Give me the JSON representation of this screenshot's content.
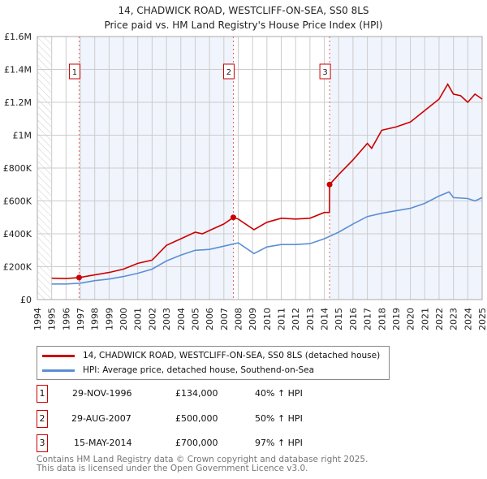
{
  "chart_data": {
    "type": "line",
    "title": "14, CHADWICK ROAD, WESTCLIFF-ON-SEA, SS0 8LS",
    "subtitle": "Price paid vs. HM Land Registry's House Price Index (HPI)",
    "xlim": [
      1994,
      2025
    ],
    "ylim": [
      0,
      1600000
    ],
    "yticks": [
      {
        "v": 0,
        "label": "£0"
      },
      {
        "v": 200000,
        "label": "£200K"
      },
      {
        "v": 400000,
        "label": "£400K"
      },
      {
        "v": 600000,
        "label": "£600K"
      },
      {
        "v": 800000,
        "label": "£800K"
      },
      {
        "v": 1000000,
        "label": "£1M"
      },
      {
        "v": 1200000,
        "label": "£1.2M"
      },
      {
        "v": 1400000,
        "label": "£1.4M"
      },
      {
        "v": 1600000,
        "label": "£1.6M"
      }
    ],
    "xticks": [
      "1994",
      "1995",
      "1996",
      "1997",
      "1998",
      "1999",
      "2000",
      "2001",
      "2002",
      "2003",
      "2004",
      "2005",
      "2006",
      "2007",
      "2008",
      "2009",
      "2010",
      "2011",
      "2012",
      "2013",
      "2014",
      "2015",
      "2016",
      "2017",
      "2018",
      "2019",
      "2020",
      "2021",
      "2022",
      "2023",
      "2024",
      "2025"
    ],
    "grid": true,
    "series": [
      {
        "name": "14, CHADWICK ROAD, WESTCLIFF-ON-SEA, SS0 8LS (detached house)",
        "color": "#cc0000",
        "x": [
          1995,
          1996,
          1996.91,
          1998,
          1999,
          2000,
          2001,
          2002,
          2003,
          2004,
          2005,
          2005.5,
          2006,
          2007,
          2007.66,
          2008,
          2009.1,
          2010,
          2011,
          2012,
          2013,
          2014,
          2014.36,
          2014.37,
          2015,
          2016,
          2017,
          2017.3,
          2018,
          2019,
          2020,
          2021,
          2022,
          2022.6,
          2023,
          2023.5,
          2024,
          2024.5,
          2025
        ],
        "y": [
          130000,
          128000,
          134000,
          150000,
          165000,
          185000,
          220000,
          240000,
          330000,
          370000,
          410000,
          400000,
          420000,
          460000,
          500000,
          490000,
          425000,
          470000,
          495000,
          490000,
          495000,
          530000,
          530000,
          700000,
          760000,
          850000,
          950000,
          920000,
          1030000,
          1050000,
          1080000,
          1150000,
          1220000,
          1310000,
          1250000,
          1240000,
          1200000,
          1250000,
          1220000
        ]
      },
      {
        "name": "HPI: Average price, detached house, Southend-on-Sea",
        "color": "#5b8fd4",
        "x": [
          1995,
          1996,
          1997,
          1998,
          1999,
          2000,
          2001,
          2002,
          2003,
          2004,
          2005,
          2006,
          2007,
          2008,
          2009.1,
          2010,
          2011,
          2012,
          2013,
          2014,
          2015,
          2016,
          2017,
          2018,
          2019,
          2020,
          2021,
          2022,
          2022.7,
          2023,
          2024,
          2024.5,
          2025
        ],
        "y": [
          95000,
          95000,
          100000,
          115000,
          125000,
          140000,
          160000,
          185000,
          235000,
          270000,
          300000,
          305000,
          325000,
          345000,
          280000,
          320000,
          335000,
          335000,
          340000,
          370000,
          410000,
          460000,
          505000,
          525000,
          540000,
          555000,
          585000,
          630000,
          655000,
          620000,
          615000,
          600000,
          620000
        ]
      }
    ],
    "sales": [
      {
        "n": "1",
        "x": 1996.91,
        "y": 134000,
        "date": "29-NOV-1996",
        "price": "£134,000",
        "delta": "40% ↑ HPI"
      },
      {
        "n": "2",
        "x": 2007.66,
        "y": 500000,
        "date": "29-AUG-2007",
        "price": "£500,000",
        "delta": "50% ↑ HPI"
      },
      {
        "n": "3",
        "x": 2014.37,
        "y": 700000,
        "date": "15-MAY-2014",
        "price": "£700,000",
        "delta": "97% ↑ HPI"
      }
    ],
    "legend_position": "below"
  },
  "footer": [
    "Contains HM Land Registry data © Crown copyright and database right 2025.",
    "This data is licensed under the Open Government Licence v3.0."
  ]
}
